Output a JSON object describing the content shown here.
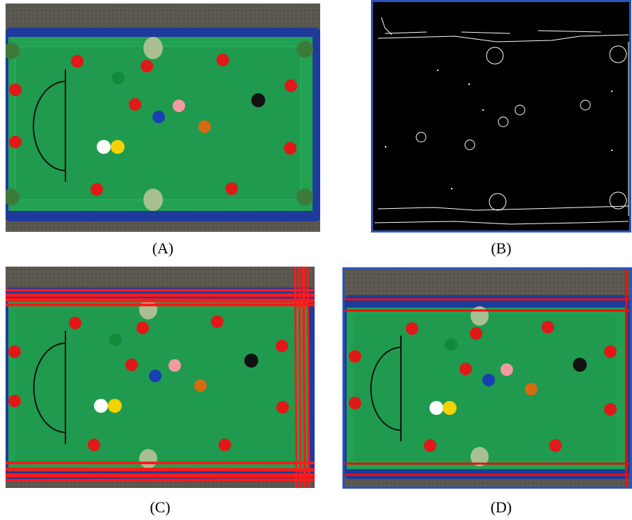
{
  "figure": {
    "panels": [
      {
        "id": "A",
        "caption": "(A)",
        "content": "photo-snooker-table"
      },
      {
        "id": "B",
        "caption": "(B)",
        "content": "edge-detection-result"
      },
      {
        "id": "C",
        "caption": "(C)",
        "content": "photo-with-detected-lines"
      },
      {
        "id": "D",
        "caption": "(D)",
        "content": "photo-with-selected-boundaries"
      }
    ]
  },
  "colors": {
    "felt": "#1f9a4e",
    "rail": "#1e3a9a",
    "carpet": "#5a5650",
    "line_overlay": "#ff1a1a",
    "edge_bg": "#000000",
    "edge_fg": "#ffffff"
  }
}
